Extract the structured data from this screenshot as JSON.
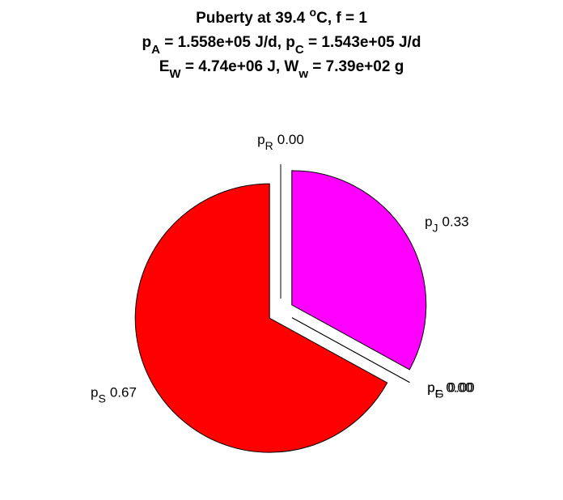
{
  "chart_data": {
    "type": "pie",
    "title": [
      [
        "Puberty at 39.4 ",
        {
          "sup": "o"
        },
        "C, f = 1"
      ],
      [
        "p",
        {
          "sub": "A"
        },
        " = 1.558e+05 J/d,  p",
        {
          "sub": "C"
        },
        " = 1.543e+05 J/d"
      ],
      [
        "E",
        {
          "sub": "W"
        },
        " = 4.74e+06 J, W",
        {
          "sub": "w"
        },
        " = 7.39e+02 g"
      ]
    ],
    "categories": [
      {
        "text": "p",
        "sub": "R"
      },
      {
        "text": "p",
        "sub": "J"
      },
      {
        "text": "p",
        "sub": "F"
      },
      {
        "text": "p",
        "sub": "G"
      },
      {
        "text": "p",
        "sub": "S"
      }
    ],
    "values": [
      0,
      0.33,
      0,
      0,
      0.67
    ],
    "value_labels": [
      "0.00",
      "0.33",
      "0.00",
      "0.00",
      "0.67"
    ],
    "colors": [
      "#0000ff",
      "#ff00ff",
      "#00ffff",
      "#ffff00",
      "#ff0000"
    ],
    "start_angle": 90,
    "direction": "clockwise",
    "exploded": true
  }
}
